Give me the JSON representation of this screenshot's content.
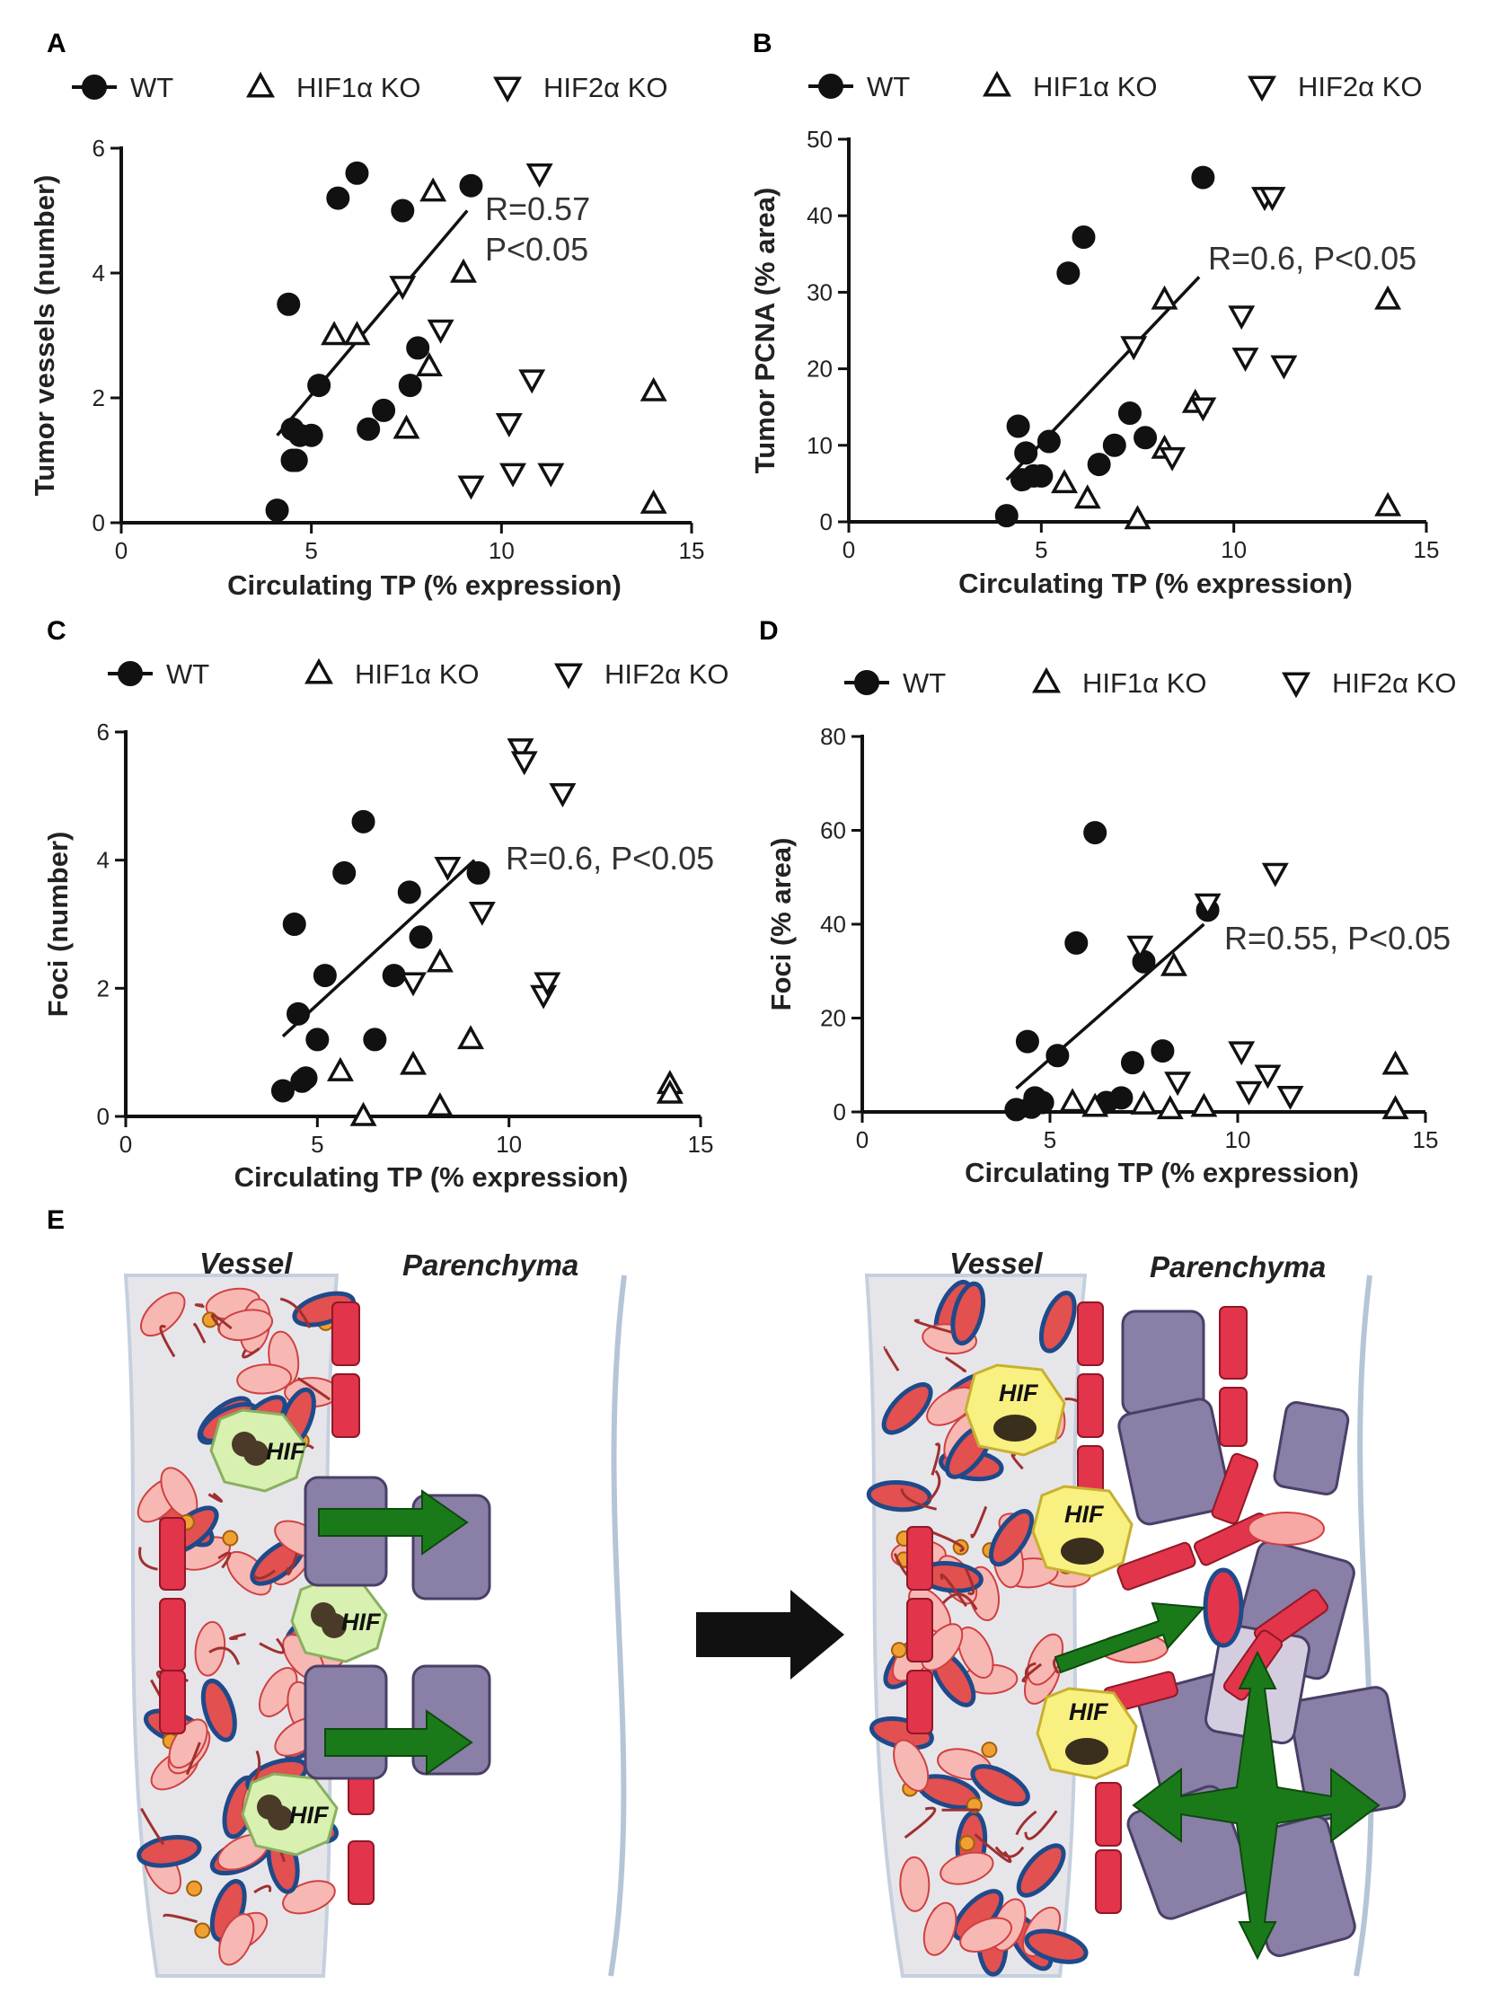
{
  "legend": {
    "wt": "WT",
    "hif1": "HIF1α KO",
    "hif2": "HIF2α KO"
  },
  "colors": {
    "wt": "#111111",
    "open": "#111111",
    "arrow_green": "#1a7a1a",
    "vessel_bg": "#e6e6ea",
    "cell_purple": "#8a7fa6",
    "pericyte_red": "#e2344a",
    "hif_green": "#d8f0b0",
    "hif_yellow": "#f8f080"
  },
  "diagram": {
    "letter": "E",
    "vessel_left": "Vessel",
    "parenchyma_left": "Parenchyma",
    "vessel_right": "Vessel",
    "parenchyma_right": "Parenchyma",
    "hif_label": "HIF"
  },
  "chart_data": [
    {
      "letter": "A",
      "type": "scatter",
      "xlabel": "Circulating TP (% expression)",
      "ylabel": "Tumor vessels (number)",
      "xlim": [
        0,
        15
      ],
      "ylim": [
        0,
        6
      ],
      "xticks": [
        "0",
        "5",
        "10",
        "15"
      ],
      "yticks": [
        "0",
        "2",
        "4",
        "6"
      ],
      "annotation": [
        "R=0.57",
        "P<0.05"
      ],
      "fit": [
        [
          4.1,
          1.4
        ],
        [
          9.1,
          5.0
        ]
      ],
      "series": [
        {
          "name": "WT",
          "marker": "circle",
          "points": [
            [
              4.1,
              0.2
            ],
            [
              4.4,
              3.5
            ],
            [
              4.5,
              1.0
            ],
            [
              4.5,
              1.5
            ],
            [
              4.6,
              1.0
            ],
            [
              4.7,
              1.4
            ],
            [
              5.0,
              1.4
            ],
            [
              5.2,
              2.2
            ],
            [
              5.7,
              5.2
            ],
            [
              6.2,
              5.6
            ],
            [
              6.5,
              1.5
            ],
            [
              6.9,
              1.8
            ],
            [
              7.4,
              5.0
            ],
            [
              7.6,
              2.2
            ],
            [
              7.8,
              2.8
            ],
            [
              9.2,
              5.4
            ]
          ]
        },
        {
          "name": "HIF1α KO",
          "marker": "triangle-up",
          "points": [
            [
              5.6,
              3.0
            ],
            [
              6.2,
              3.0
            ],
            [
              7.5,
              1.5
            ],
            [
              8.1,
              2.5
            ],
            [
              8.2,
              5.3
            ],
            [
              9.0,
              4.0
            ],
            [
              14.0,
              2.1
            ],
            [
              14.0,
              0.3
            ]
          ]
        },
        {
          "name": "HIF2α KO",
          "marker": "triangle-down",
          "points": [
            [
              7.4,
              3.8
            ],
            [
              8.4,
              3.1
            ],
            [
              9.2,
              0.6
            ],
            [
              10.2,
              1.6
            ],
            [
              10.3,
              0.8
            ],
            [
              10.8,
              2.3
            ],
            [
              11.3,
              0.8
            ],
            [
              11.0,
              5.6
            ]
          ]
        }
      ]
    },
    {
      "letter": "B",
      "type": "scatter",
      "xlabel": "Circulating TP (% expression)",
      "ylabel": "Tumor PCNA (% area)",
      "xlim": [
        0,
        15
      ],
      "ylim": [
        0,
        50
      ],
      "xticks": [
        "0",
        "5",
        "10",
        "15"
      ],
      "yticks": [
        "0",
        "10",
        "20",
        "30",
        "40",
        "50"
      ],
      "annotation": [
        "R=0.6, P<0.05"
      ],
      "fit": [
        [
          4.1,
          5.5
        ],
        [
          9.1,
          32.0
        ]
      ],
      "series": [
        {
          "name": "WT",
          "marker": "circle",
          "points": [
            [
              4.1,
              0.8
            ],
            [
              4.4,
              12.5
            ],
            [
              4.5,
              5.5
            ],
            [
              4.6,
              9.0
            ],
            [
              4.8,
              6.0
            ],
            [
              5.0,
              6.0
            ],
            [
              5.2,
              10.5
            ],
            [
              5.7,
              32.5
            ],
            [
              6.1,
              37.2
            ],
            [
              6.5,
              7.5
            ],
            [
              6.9,
              10.0
            ],
            [
              7.3,
              14.2
            ],
            [
              7.7,
              11.0
            ],
            [
              9.2,
              45.0
            ]
          ]
        },
        {
          "name": "HIF1α KO",
          "marker": "triangle-up",
          "points": [
            [
              5.6,
              5.0
            ],
            [
              6.2,
              3.0
            ],
            [
              7.5,
              0.3
            ],
            [
              8.2,
              29.0
            ],
            [
              8.2,
              9.5
            ],
            [
              9.0,
              15.5
            ],
            [
              14.0,
              29.0
            ],
            [
              14.0,
              2.0
            ]
          ]
        },
        {
          "name": "HIF2α KO",
          "marker": "triangle-down",
          "points": [
            [
              7.4,
              23.0
            ],
            [
              8.4,
              8.5
            ],
            [
              9.2,
              15.0
            ],
            [
              10.2,
              27.0
            ],
            [
              10.3,
              21.5
            ],
            [
              10.8,
              42.5
            ],
            [
              11.0,
              42.5
            ],
            [
              11.3,
              20.5
            ]
          ]
        }
      ]
    },
    {
      "letter": "C",
      "type": "scatter",
      "xlabel": "Circulating TP (% expression)",
      "ylabel": "Foci (number)",
      "xlim": [
        0,
        15
      ],
      "ylim": [
        0,
        6
      ],
      "xticks": [
        "0",
        "5",
        "10",
        "15"
      ],
      "yticks": [
        "0",
        "2",
        "4",
        "6"
      ],
      "annotation": [
        "R=0.6, P<0.05"
      ],
      "fit": [
        [
          4.1,
          1.25
        ],
        [
          9.1,
          4.0
        ]
      ],
      "series": [
        {
          "name": "WT",
          "marker": "circle",
          "points": [
            [
              4.1,
              0.4
            ],
            [
              4.4,
              3.0
            ],
            [
              4.5,
              1.6
            ],
            [
              4.6,
              0.55
            ],
            [
              4.7,
              0.6
            ],
            [
              5.0,
              1.2
            ],
            [
              5.2,
              2.2
            ],
            [
              5.7,
              3.8
            ],
            [
              6.2,
              4.6
            ],
            [
              6.5,
              1.2
            ],
            [
              7.0,
              2.2
            ],
            [
              7.4,
              3.5
            ],
            [
              7.7,
              2.8
            ],
            [
              9.2,
              3.8
            ]
          ]
        },
        {
          "name": "HIF1α KO",
          "marker": "triangle-up",
          "points": [
            [
              5.6,
              0.7
            ],
            [
              6.2,
              0.0
            ],
            [
              7.5,
              0.8
            ],
            [
              8.2,
              2.4
            ],
            [
              8.2,
              0.15
            ],
            [
              9.0,
              1.2
            ],
            [
              14.2,
              0.5
            ],
            [
              14.2,
              0.35
            ]
          ]
        },
        {
          "name": "HIF2α KO",
          "marker": "triangle-down",
          "points": [
            [
              7.5,
              2.1
            ],
            [
              8.4,
              3.9
            ],
            [
              9.3,
              3.2
            ],
            [
              10.3,
              5.75
            ],
            [
              10.4,
              5.55
            ],
            [
              10.9,
              1.9
            ],
            [
              11.0,
              2.1
            ],
            [
              11.4,
              5.05
            ]
          ]
        }
      ]
    },
    {
      "letter": "D",
      "type": "scatter",
      "xlabel": "Circulating TP (% expression)",
      "ylabel": "Foci (% area)",
      "xlim": [
        0,
        15
      ],
      "ylim": [
        0,
        80
      ],
      "xticks": [
        "0",
        "5",
        "10",
        "15"
      ],
      "yticks": [
        "0",
        "20",
        "40",
        "60",
        "80"
      ],
      "annotation": [
        "R=0.55, P<0.05"
      ],
      "fit": [
        [
          4.1,
          5.0
        ],
        [
          9.1,
          40.0
        ]
      ],
      "series": [
        {
          "name": "WT",
          "marker": "circle",
          "points": [
            [
              4.1,
              0.5
            ],
            [
              4.4,
              15.0
            ],
            [
              4.5,
              1.0
            ],
            [
              4.6,
              3.0
            ],
            [
              4.8,
              2.0
            ],
            [
              5.2,
              12.0
            ],
            [
              5.7,
              36.0
            ],
            [
              6.2,
              59.5
            ],
            [
              6.5,
              2.0
            ],
            [
              6.9,
              3.0
            ],
            [
              7.2,
              10.5
            ],
            [
              7.5,
              32.0
            ],
            [
              8.0,
              13.0
            ],
            [
              9.2,
              43.0
            ]
          ]
        },
        {
          "name": "HIF1α KO",
          "marker": "triangle-up",
          "points": [
            [
              5.6,
              2.0
            ],
            [
              6.2,
              1.0
            ],
            [
              7.5,
              1.5
            ],
            [
              8.2,
              0.5
            ],
            [
              8.3,
              31.0
            ],
            [
              9.1,
              1.0
            ],
            [
              14.2,
              10.0
            ],
            [
              14.2,
              0.5
            ]
          ]
        },
        {
          "name": "HIF2α KO",
          "marker": "triangle-down",
          "points": [
            [
              7.4,
              35.5
            ],
            [
              8.4,
              6.5
            ],
            [
              9.2,
              44.5
            ],
            [
              10.1,
              13.0
            ],
            [
              10.3,
              4.5
            ],
            [
              10.8,
              8.0
            ],
            [
              11.0,
              51.0
            ],
            [
              11.4,
              3.5
            ]
          ]
        }
      ]
    }
  ]
}
